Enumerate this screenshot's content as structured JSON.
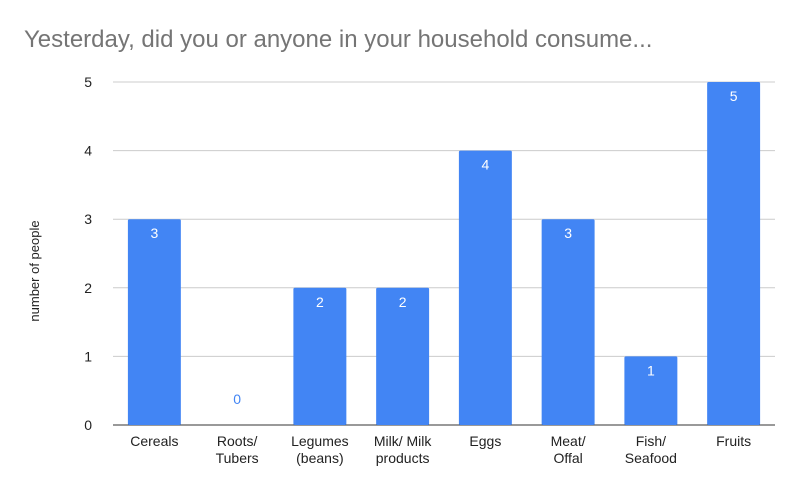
{
  "chart_data": {
    "type": "bar",
    "title": "Yesterday, did you or anyone in your household consume...",
    "xlabel": "",
    "ylabel": "number of people",
    "categories": [
      [
        "Cereals"
      ],
      [
        "Roots/",
        "Tubers"
      ],
      [
        "Legumes",
        "(beans)"
      ],
      [
        "Milk/ Milk",
        "products"
      ],
      [
        "Eggs"
      ],
      [
        "Meat/",
        "Offal"
      ],
      [
        "Fish/",
        "Seafood"
      ],
      [
        "Fruits"
      ]
    ],
    "values": [
      3,
      0,
      2,
      2,
      4,
      3,
      1,
      5
    ],
    "ylim": [
      0,
      5
    ],
    "yticks": [
      "0",
      "1",
      "2",
      "3",
      "4",
      "5"
    ],
    "grid": true,
    "legend": "none",
    "bar_color": "#4285f4",
    "data_label_color_inside": "#ffffff",
    "data_label_color_outside": "#4285f4"
  }
}
